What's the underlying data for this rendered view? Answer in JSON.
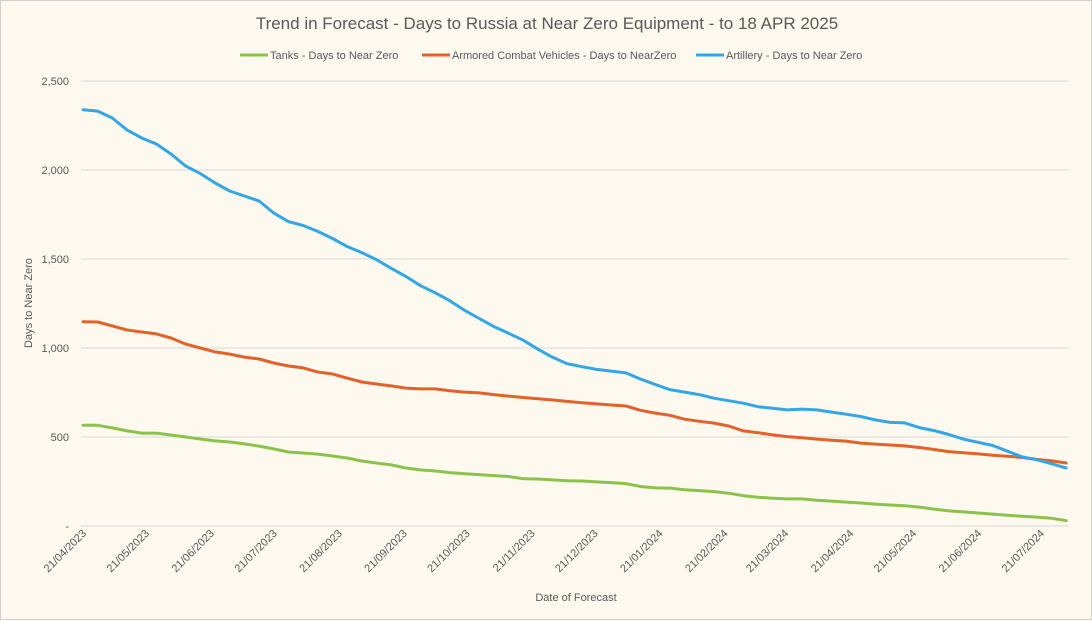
{
  "chart_data": {
    "type": "line",
    "title": "Trend in Forecast - Days to Russia at Near Zero Equipment - to 18 APR 2025",
    "xlabel": "Date of Forecast",
    "ylabel": "Days to Near Zero",
    "ylim": [
      0,
      2500
    ],
    "yticks": [
      0,
      500,
      1000,
      1500,
      2000,
      2500
    ],
    "ytick_labels": [
      "-",
      "500",
      "1,000",
      "1,500",
      "2,000",
      "2,500"
    ],
    "grid": true,
    "legend_position": "top",
    "x_start": "21/04/2023",
    "x_interval_days": 7,
    "x_range_days": [
      0,
      470
    ],
    "xtick_labels": [
      "21/04/2023",
      "21/05/2023",
      "21/06/2023",
      "21/07/2023",
      "21/08/2023",
      "21/09/2023",
      "21/10/2023",
      "21/11/2023",
      "21/12/2023",
      "21/01/2024",
      "21/02/2024",
      "21/03/2024",
      "21/04/2024",
      "21/05/2024",
      "21/06/2024",
      "21/07/2024"
    ],
    "xtick_days": [
      0,
      30,
      61,
      91,
      122,
      153,
      183,
      214,
      244,
      275,
      306,
      335,
      366,
      396,
      427,
      457
    ],
    "series": [
      {
        "name": "Tanks - Days to Near Zero",
        "color": "#8bc34a",
        "values": [
          566,
          566,
          551,
          534,
          522,
          522,
          511,
          500,
          489,
          478,
          472,
          461,
          449,
          433,
          416,
          410,
          404,
          393,
          382,
          365,
          354,
          343,
          326,
          315,
          309,
          300,
          294,
          289,
          283,
          278,
          266,
          264,
          259,
          254,
          253,
          248,
          244,
          238,
          222,
          214,
          213,
          204,
          199,
          193,
          184,
          170,
          161,
          156,
          152,
          152,
          145,
          140,
          134,
          129,
          123,
          118,
          114,
          106,
          95,
          85,
          79,
          73,
          67,
          60,
          55,
          50,
          44,
          30
        ]
      },
      {
        "name": "Armored Combat Vehicles - Days to NearZero",
        "color": "#e2622a",
        "values": [
          1148,
          1146,
          1124,
          1101,
          1090,
          1079,
          1056,
          1022,
          1000,
          978,
          966,
          949,
          938,
          916,
          899,
          888,
          865,
          854,
          831,
          809,
          798,
          787,
          775,
          770,
          770,
          760,
          752,
          748,
          738,
          730,
          722,
          715,
          708,
          700,
          692,
          686,
          680,
          674,
          650,
          634,
          622,
          600,
          588,
          578,
          562,
          534,
          524,
          512,
          502,
          496,
          488,
          482,
          477,
          466,
          460,
          455,
          450,
          441,
          430,
          418,
          412,
          405,
          398,
          392,
          385,
          374,
          366,
          354
        ]
      },
      {
        "name": "Artillery - Days to Near Zero",
        "color": "#33a6e6",
        "values": [
          2339,
          2331,
          2292,
          2225,
          2180,
          2146,
          2090,
          2022,
          1980,
          1927,
          1882,
          1854,
          1826,
          1758,
          1710,
          1688,
          1655,
          1615,
          1570,
          1536,
          1496,
          1448,
          1402,
          1350,
          1310,
          1266,
          1212,
          1166,
          1120,
          1083,
          1044,
          993,
          948,
          912,
          895,
          880,
          870,
          860,
          825,
          795,
          766,
          752,
          738,
          718,
          704,
          690,
          670,
          662,
          652,
          657,
          652,
          640,
          628,
          615,
          596,
          582,
          579,
          553,
          536,
          514,
          488,
          470,
          452,
          420,
          388,
          372,
          350,
          326
        ]
      }
    ]
  }
}
